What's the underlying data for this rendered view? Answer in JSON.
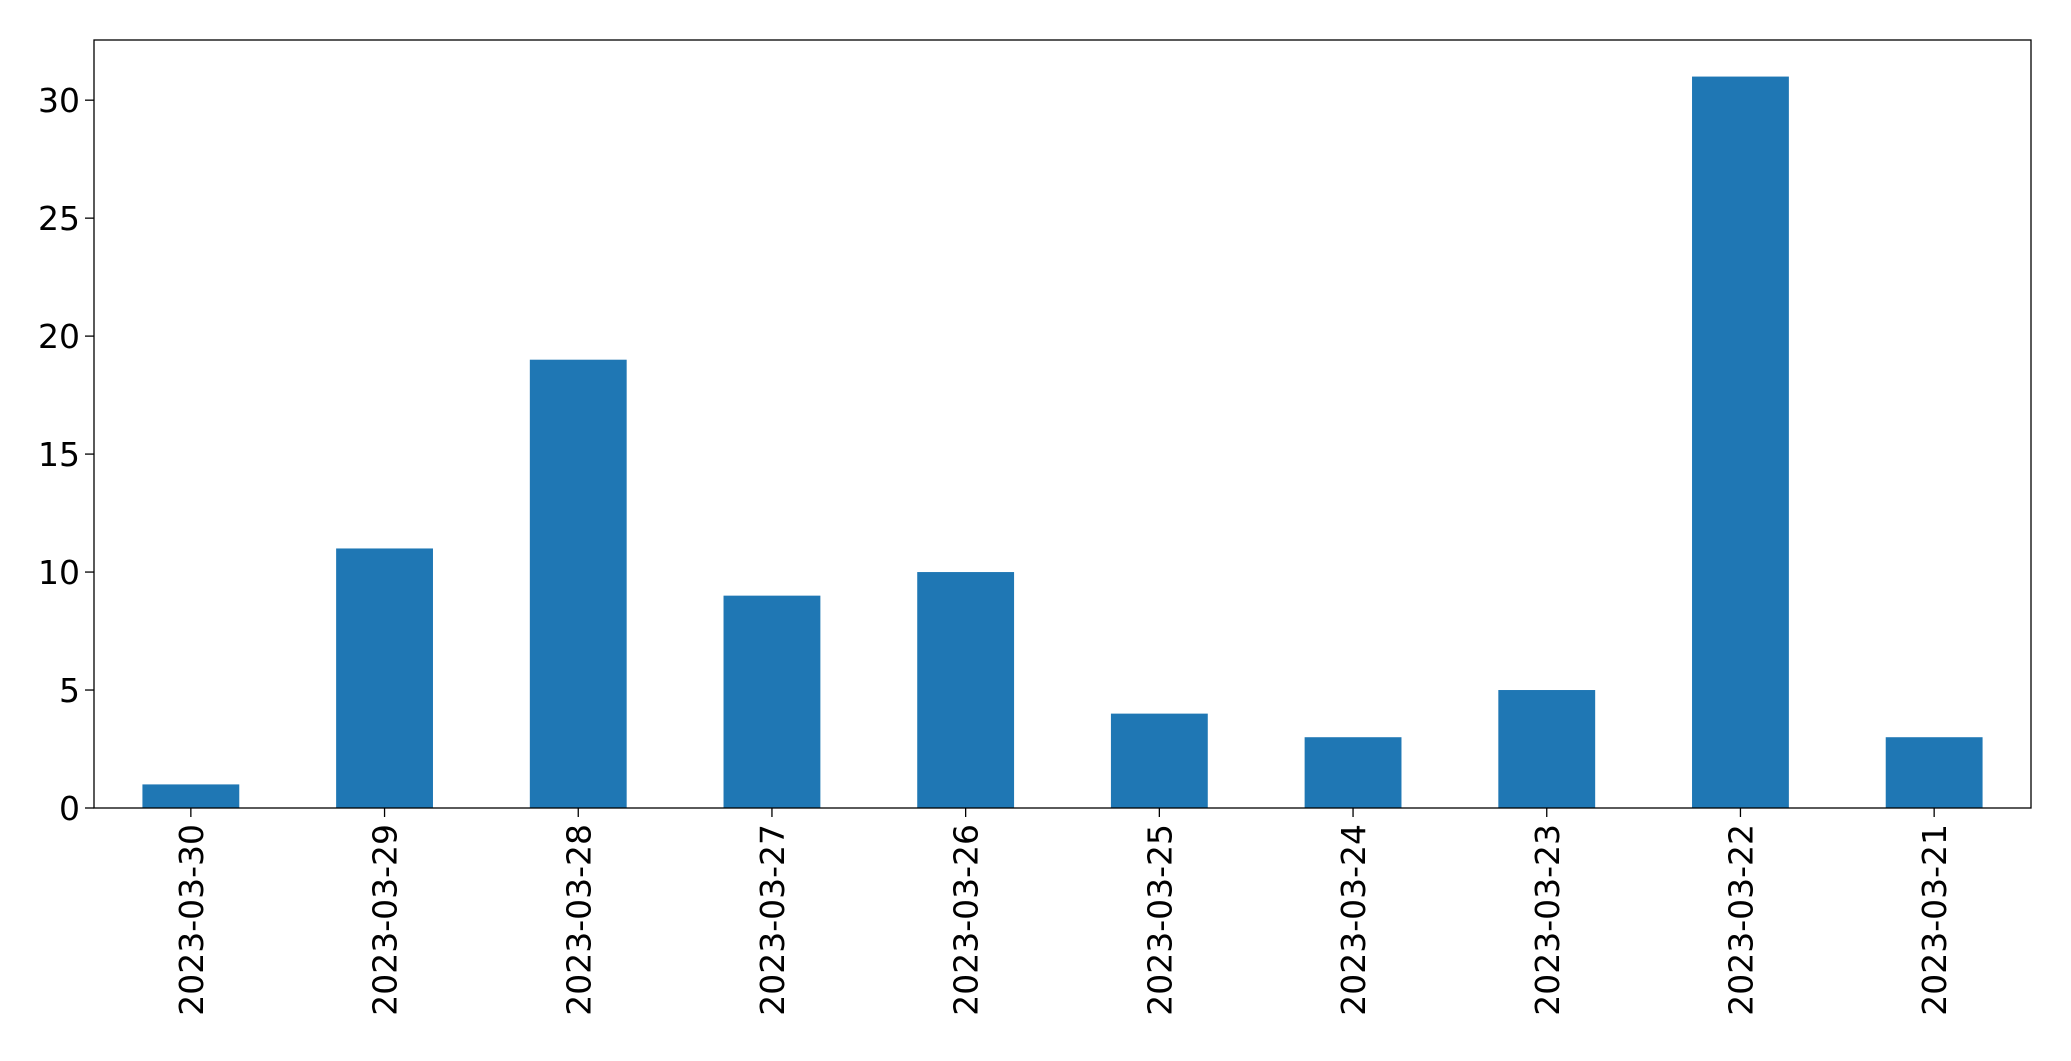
{
  "chart_data": {
    "type": "bar",
    "categories": [
      "2023-03-30",
      "2023-03-29",
      "2023-03-28",
      "2023-03-27",
      "2023-03-26",
      "2023-03-25",
      "2023-03-24",
      "2023-03-23",
      "2023-03-22",
      "2023-03-21"
    ],
    "values": [
      1,
      11,
      19,
      9,
      10,
      4,
      3,
      5,
      31,
      3
    ],
    "color": "#1f77b4",
    "ylim": [
      0,
      32.55
    ],
    "yticks": [
      0,
      5,
      10,
      15,
      20,
      25,
      30
    ],
    "grid": false
  }
}
